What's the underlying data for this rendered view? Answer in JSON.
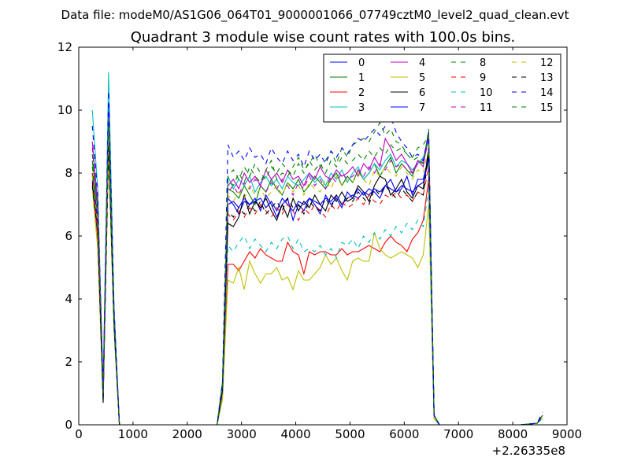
{
  "chart_data": {
    "type": "line",
    "suptitle": "Data file: modeM0/AS1G06_064T01_9000001066_07749cztM0_level2_quad_clean.evt",
    "title": "Quadrant 3 module wise count rates with 100.0s bins.",
    "xlabel": "",
    "ylabel": "",
    "x_offset_label": "+2.26335e8",
    "xlim": [
      0,
      9000
    ],
    "ylim": [
      0,
      12
    ],
    "xticks": [
      0,
      1000,
      2000,
      3000,
      4000,
      5000,
      6000,
      7000,
      8000,
      9000
    ],
    "yticks": [
      0,
      2,
      4,
      6,
      8,
      10,
      12
    ],
    "grid": false,
    "legend": {
      "position": "top-right",
      "columns": 4
    },
    "x": [
      250,
      350,
      450,
      550,
      650,
      750,
      1250,
      1750,
      2250,
      2550,
      2650,
      2750,
      2850,
      2950,
      3050,
      3150,
      3250,
      3350,
      3450,
      3550,
      3650,
      3750,
      3850,
      3950,
      4050,
      4150,
      4250,
      4350,
      4450,
      4550,
      4650,
      4750,
      4850,
      4950,
      5050,
      5150,
      5250,
      5350,
      5450,
      5550,
      5650,
      5750,
      5850,
      5950,
      6050,
      6150,
      6250,
      6350,
      6450,
      6550,
      6650,
      7150,
      7650,
      8150,
      8450,
      8550
    ],
    "series": [
      {
        "name": "0",
        "color": "#0000ff",
        "dash": "solid",
        "values": [
          8.0,
          6.5,
          0.8,
          10.2,
          3.5,
          0,
          0,
          0,
          0,
          0,
          1.2,
          7.2,
          7.0,
          6.7,
          7.1,
          7.0,
          7.2,
          6.8,
          7.3,
          7.0,
          6.6,
          7.0,
          7.2,
          6.5,
          7.0,
          6.8,
          7.2,
          7.0,
          6.7,
          7.3,
          7.0,
          7.2,
          6.9,
          7.4,
          7.2,
          7.5,
          7.3,
          7.5,
          7.4,
          7.2,
          7.6,
          7.8,
          7.4,
          7.5,
          7.9,
          7.3,
          7.8,
          7.8,
          8.5,
          0.3,
          0,
          0,
          0,
          0,
          0.05,
          0.3
        ]
      },
      {
        "name": "1",
        "color": "#008000",
        "dash": "solid",
        "values": [
          8.4,
          6.8,
          1.0,
          9.6,
          3.3,
          0,
          0,
          0,
          0,
          0,
          1.3,
          7.5,
          7.4,
          7.2,
          7.6,
          7.3,
          7.0,
          7.6,
          7.4,
          7.8,
          7.5,
          7.3,
          7.7,
          7.5,
          7.8,
          7.4,
          7.6,
          7.9,
          7.7,
          7.5,
          7.8,
          8.0,
          7.6,
          7.9,
          7.7,
          8.1,
          7.8,
          8.0,
          8.3,
          7.9,
          8.2,
          8.5,
          8.0,
          8.3,
          8.1,
          7.9,
          8.4,
          8.3,
          9.1,
          0.3,
          0,
          0,
          0,
          0,
          0.05,
          0.3
        ]
      },
      {
        "name": "2",
        "color": "#ff0000",
        "dash": "solid",
        "values": [
          7.8,
          5.9,
          0.9,
          9.0,
          3.2,
          0,
          0,
          0,
          0,
          0,
          1.0,
          5.1,
          5.1,
          4.9,
          5.2,
          5.5,
          5.3,
          5.6,
          5.4,
          5.3,
          5.2,
          5.2,
          5.8,
          5.5,
          5.4,
          4.8,
          5.5,
          5.4,
          5.5,
          5.5,
          5.4,
          5.4,
          5.6,
          5.4,
          5.5,
          5.5,
          5.6,
          5.7,
          5.6,
          5.5,
          5.8,
          6.0,
          5.8,
          5.7,
          5.5,
          5.9,
          6.1,
          6.5,
          7.8,
          0.2,
          0,
          0,
          0,
          0,
          0.05,
          0.2
        ]
      },
      {
        "name": "3",
        "color": "#00bfbf",
        "dash": "solid",
        "values": [
          10.0,
          7.5,
          1.2,
          11.2,
          3.8,
          0,
          0,
          0,
          0,
          0,
          1.4,
          7.9,
          7.5,
          7.8,
          7.6,
          7.9,
          7.4,
          7.7,
          7.9,
          7.6,
          7.8,
          7.5,
          7.9,
          7.7,
          7.6,
          7.8,
          8.0,
          7.7,
          7.9,
          7.6,
          8.0,
          7.8,
          8.1,
          7.7,
          8.0,
          8.2,
          7.8,
          8.0,
          8.3,
          8.1,
          8.4,
          8.6,
          8.2,
          8.4,
          8.3,
          8.1,
          8.3,
          8.5,
          9.0,
          0.3,
          0,
          0,
          0,
          0,
          0.05,
          0.3
        ]
      },
      {
        "name": "4",
        "color": "#bf00bf",
        "dash": "solid",
        "values": [
          9.0,
          7.0,
          1.1,
          9.8,
          3.6,
          0,
          0,
          0,
          0,
          0,
          1.3,
          7.6,
          7.8,
          7.5,
          8.0,
          7.7,
          7.9,
          7.6,
          8.1,
          7.8,
          8.0,
          7.7,
          8.1,
          7.8,
          7.9,
          7.6,
          8.0,
          7.8,
          8.2,
          7.9,
          7.8,
          8.1,
          7.9,
          8.0,
          8.2,
          7.9,
          8.3,
          8.1,
          8.5,
          8.2,
          9.1,
          8.8,
          8.4,
          8.6,
          8.3,
          8.0,
          8.4,
          8.2,
          9.3,
          0.3,
          0,
          0,
          0,
          0,
          0.05,
          0.3
        ]
      },
      {
        "name": "5",
        "color": "#bfbf00",
        "dash": "solid",
        "values": [
          7.5,
          5.6,
          0.8,
          8.6,
          3.0,
          0,
          0,
          0,
          0,
          0,
          0.8,
          4.6,
          4.5,
          5.0,
          4.3,
          5.2,
          4.8,
          4.5,
          4.8,
          4.8,
          5.0,
          4.6,
          4.7,
          4.3,
          4.9,
          4.6,
          4.6,
          4.8,
          5.0,
          5.4,
          5.1,
          5.3,
          4.9,
          4.6,
          5.2,
          5.3,
          5.2,
          5.2,
          6.1,
          5.6,
          5.4,
          5.3,
          5.4,
          5.5,
          5.4,
          5.3,
          5.0,
          5.4,
          7.0,
          0.2,
          0,
          0,
          0,
          0,
          0.05,
          0.2
        ]
      },
      {
        "name": "6",
        "color": "#000000",
        "dash": "solid",
        "values": [
          7.7,
          6.2,
          0.7,
          9.2,
          3.2,
          0,
          0,
          0,
          0,
          0,
          1.1,
          6.4,
          6.3,
          6.6,
          7.3,
          6.7,
          7.1,
          6.9,
          7.2,
          6.8,
          6.5,
          7.0,
          6.6,
          7.2,
          6.8,
          7.1,
          6.9,
          7.3,
          7.0,
          6.8,
          7.3,
          7.1,
          7.4,
          7.1,
          7.2,
          7.6,
          7.4,
          7.1,
          7.6,
          7.9,
          7.8,
          7.3,
          7.5,
          7.8,
          7.4,
          7.2,
          7.6,
          7.5,
          8.8,
          0.3,
          0,
          0,
          0,
          0,
          0.05,
          0.3
        ]
      },
      {
        "name": "7",
        "color": "#0000ff",
        "dash": "solid",
        "values": [
          7.9,
          6.3,
          0.9,
          9.4,
          3.3,
          0,
          0,
          0,
          0,
          0,
          1.2,
          7.0,
          7.1,
          6.9,
          7.2,
          7.0,
          7.1,
          7.2,
          6.9,
          7.1,
          6.8,
          7.2,
          7.0,
          6.8,
          7.1,
          7.0,
          7.2,
          7.1,
          7.0,
          7.2,
          7.1,
          7.3,
          7.0,
          7.2,
          7.3,
          7.2,
          7.4,
          7.3,
          7.5,
          7.4,
          7.6,
          7.5,
          7.4,
          7.6,
          7.5,
          7.4,
          7.6,
          7.7,
          8.4,
          0.3,
          0,
          0,
          0,
          0,
          0.05,
          0.3
        ]
      },
      {
        "name": "8",
        "color": "#008000",
        "dash": "dashed",
        "values": [
          8.2,
          6.7,
          1.0,
          9.5,
          3.4,
          0,
          0,
          0,
          0,
          0,
          1.3,
          7.8,
          7.6,
          8.0,
          7.7,
          8.2,
          7.9,
          7.7,
          8.1,
          8.4,
          7.8,
          8.0,
          7.9,
          8.2,
          8.5,
          8.1,
          8.3,
          8.6,
          8.2,
          8.4,
          8.7,
          8.3,
          8.8,
          8.5,
          8.9,
          9.0,
          9.1,
          9.0,
          9.3,
          9.6,
          9.2,
          9.4,
          9.0,
          8.9,
          8.6,
          8.4,
          8.5,
          8.3,
          9.4,
          0.3,
          0,
          0,
          0,
          0,
          0.05,
          0.3
        ]
      },
      {
        "name": "9",
        "color": "#ff0000",
        "dash": "dashed",
        "values": [
          8.0,
          6.1,
          0.9,
          9.1,
          3.3,
          0,
          0,
          0,
          0,
          0,
          1.1,
          6.7,
          6.5,
          6.8,
          6.6,
          6.9,
          6.7,
          7.0,
          6.8,
          6.6,
          6.9,
          6.7,
          7.0,
          6.8,
          6.5,
          6.9,
          6.7,
          7.0,
          6.8,
          6.6,
          7.0,
          6.8,
          7.1,
          6.9,
          7.0,
          7.2,
          7.0,
          7.3,
          7.1,
          7.0,
          7.3,
          7.2,
          7.4,
          7.2,
          7.3,
          7.1,
          7.4,
          7.3,
          8.2,
          0.3,
          0,
          0,
          0,
          0,
          0.05,
          0.3
        ]
      },
      {
        "name": "10",
        "color": "#00bfbf",
        "dash": "dashed",
        "values": [
          7.6,
          6.0,
          0.8,
          8.9,
          3.1,
          0,
          0,
          0,
          0,
          0,
          1.0,
          5.7,
          5.5,
          5.8,
          6.0,
          5.6,
          5.9,
          5.7,
          5.5,
          5.8,
          5.6,
          5.9,
          6.0,
          5.6,
          5.9,
          5.5,
          5.6,
          5.5,
          5.7,
          5.4,
          5.6,
          5.3,
          5.8,
          5.7,
          5.9,
          5.6,
          6.0,
          5.8,
          6.1,
          5.9,
          6.2,
          6.0,
          6.3,
          6.1,
          6.4,
          6.2,
          6.5,
          6.3,
          7.5,
          0.2,
          0,
          0,
          0,
          0,
          0.05,
          0.2
        ]
      },
      {
        "name": "11",
        "color": "#bf00bf",
        "dash": "dashed",
        "values": [
          8.8,
          6.9,
          1.0,
          9.9,
          3.5,
          0,
          0,
          0,
          0,
          0,
          1.3,
          7.4,
          7.6,
          7.3,
          7.7,
          7.5,
          7.8,
          7.6,
          7.4,
          7.7,
          7.5,
          7.8,
          7.6,
          7.3,
          7.7,
          7.5,
          7.9,
          7.6,
          7.8,
          7.5,
          7.9,
          7.7,
          8.0,
          7.8,
          7.9,
          8.1,
          7.9,
          8.2,
          8.0,
          8.3,
          8.1,
          8.4,
          8.2,
          8.3,
          8.1,
          8.0,
          8.3,
          8.4,
          9.0,
          0.3,
          0,
          0,
          0,
          0,
          0.05,
          0.3
        ]
      },
      {
        "name": "12",
        "color": "#bfbf00",
        "dash": "dashed",
        "values": [
          7.9,
          6.4,
          0.9,
          9.3,
          3.3,
          0,
          0,
          0,
          0,
          0,
          1.2,
          7.3,
          7.1,
          7.4,
          7.2,
          7.6,
          7.3,
          7.5,
          7.2,
          7.4,
          7.6,
          7.3,
          7.7,
          7.4,
          7.6,
          7.3,
          7.7,
          7.5,
          7.4,
          7.8,
          7.5,
          7.9,
          7.6,
          7.8,
          7.7,
          8.0,
          7.8,
          7.6,
          8.1,
          7.9,
          8.2,
          8.0,
          7.9,
          8.2,
          8.0,
          7.8,
          8.1,
          8.0,
          8.8,
          0.3,
          0,
          0,
          0,
          0,
          0.05,
          0.3
        ]
      },
      {
        "name": "13",
        "color": "#000000",
        "dash": "dashed",
        "values": [
          7.6,
          6.1,
          0.8,
          8.9,
          3.2,
          0,
          0,
          0,
          0,
          0,
          1.1,
          6.8,
          6.6,
          6.9,
          6.7,
          7.0,
          6.8,
          7.1,
          6.7,
          6.9,
          7.1,
          6.8,
          7.2,
          6.9,
          7.0,
          6.7,
          7.1,
          6.9,
          6.8,
          7.2,
          6.9,
          7.3,
          7.0,
          7.2,
          7.1,
          7.4,
          7.2,
          7.0,
          7.5,
          7.3,
          7.6,
          7.4,
          7.2,
          7.5,
          7.3,
          7.1,
          7.4,
          7.3,
          8.6,
          0.3,
          0,
          0,
          0,
          0,
          0.05,
          0.3
        ]
      },
      {
        "name": "14",
        "color": "#0000ff",
        "dash": "dashed",
        "values": [
          9.5,
          7.3,
          1.1,
          10.6,
          3.7,
          0,
          0,
          0,
          0,
          0,
          1.4,
          8.9,
          8.5,
          8.7,
          8.4,
          8.8,
          8.5,
          8.6,
          8.3,
          8.8,
          8.5,
          8.3,
          8.7,
          8.4,
          8.6,
          8.2,
          8.7,
          8.4,
          8.6,
          8.3,
          8.7,
          8.5,
          8.8,
          8.6,
          8.9,
          9.1,
          9.0,
          9.2,
          9.4,
          9.2,
          9.5,
          9.8,
          9.3,
          9.0,
          8.8,
          8.5,
          8.6,
          8.4,
          9.3,
          0.3,
          0,
          0,
          0,
          0,
          0.05,
          0.4
        ]
      },
      {
        "name": "15",
        "color": "#008000",
        "dash": "dashed",
        "values": [
          8.6,
          6.8,
          1.0,
          9.7,
          3.4,
          0,
          0,
          0,
          0,
          0,
          1.3,
          7.9,
          8.1,
          7.8,
          8.2,
          7.9,
          8.3,
          8.0,
          7.8,
          8.2,
          8.0,
          8.3,
          8.1,
          7.9,
          8.3,
          8.0,
          8.4,
          8.1,
          8.3,
          8.0,
          8.4,
          8.2,
          8.5,
          8.3,
          8.4,
          8.6,
          8.4,
          8.7,
          8.5,
          8.8,
          8.6,
          8.9,
          8.7,
          8.8,
          8.6,
          8.5,
          8.8,
          8.9,
          9.2,
          0.3,
          0,
          0,
          0,
          0,
          0.05,
          0.3
        ]
      }
    ]
  }
}
